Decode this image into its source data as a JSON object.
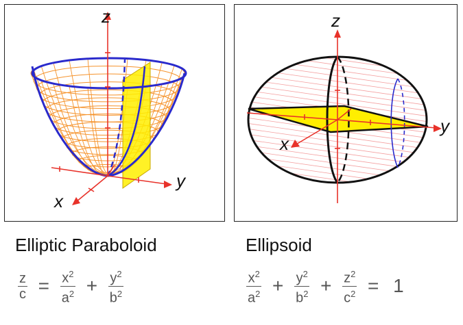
{
  "panels": {
    "paraboloid": {
      "title": "Elliptic Paraboloid",
      "axes": {
        "z": "z",
        "x": "x",
        "y": "y"
      },
      "formula": {
        "lhs": {
          "num": "z",
          "den": "c"
        },
        "eq": "=",
        "term1": {
          "num": "x",
          "num_exp": "2",
          "den": "a",
          "den_exp": "2"
        },
        "plus": "+",
        "term2": {
          "num": "y",
          "num_exp": "2",
          "den": "b",
          "den_exp": "2"
        }
      }
    },
    "ellipsoid": {
      "title": "Ellipsoid",
      "axes": {
        "z": "z",
        "x": "x",
        "y": "y"
      },
      "formula": {
        "term1": {
          "num": "x",
          "num_exp": "2",
          "den": "a",
          "den_exp": "2"
        },
        "plus1": "+",
        "term2": {
          "num": "y",
          "num_exp": "2",
          "den": "b",
          "den_exp": "2"
        },
        "plus2": "+",
        "term3": {
          "num": "z",
          "num_exp": "2",
          "den": "c",
          "den_exp": "2"
        },
        "eq": "=",
        "rhs": "1"
      }
    }
  },
  "colors": {
    "axis": "#e8322a",
    "surface_mesh": "#f5922a",
    "ellipsoid_mesh": "#f4a0a0",
    "trace": "#2a2acc",
    "plane": "#ffee00",
    "outline": "#111111"
  }
}
